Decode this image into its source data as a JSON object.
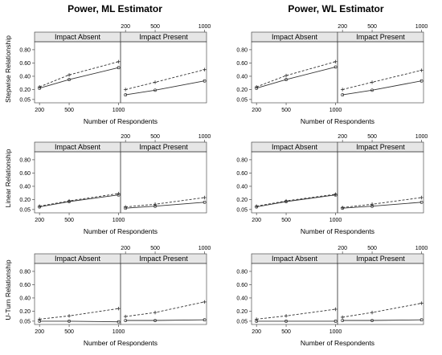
{
  "columns": [
    {
      "title": "Power, ML Estimator"
    },
    {
      "title": "Power, WL Estimator"
    }
  ],
  "row_labels": [
    "Stepwise Relationship",
    "Linear Relationship",
    "U-Turn Relationship"
  ],
  "panel_labels": [
    "Impact Absent",
    "Impact Present"
  ],
  "xlabel": "Number of Respondents",
  "x_ticks": [
    "200",
    "500",
    "1000"
  ],
  "y_ticks": [
    "0.05",
    "0.20",
    "0.40",
    "0.60",
    "0.80"
  ],
  "chart_data": {
    "type": "line",
    "x": [
      200,
      500,
      1000
    ],
    "ylim": [
      0,
      0.92
    ],
    "y_ticks": [
      0.05,
      0.2,
      0.4,
      0.6,
      0.8
    ],
    "grid": false,
    "legend": "none",
    "line_styles": {
      "solid": "#333333",
      "dashed": "#333333"
    },
    "panels": [
      {
        "estimator": "ML",
        "relationship": "Stepwise Relationship",
        "impact": "Impact Absent",
        "series": [
          {
            "style": "dashed",
            "values": [
              0.24,
              0.42,
              0.62
            ]
          },
          {
            "style": "solid",
            "values": [
              0.22,
              0.35,
              0.53
            ]
          }
        ]
      },
      {
        "estimator": "ML",
        "relationship": "Stepwise Relationship",
        "impact": "Impact Present",
        "series": [
          {
            "style": "dashed",
            "values": [
              0.2,
              0.31,
              0.5
            ]
          },
          {
            "style": "solid",
            "values": [
              0.12,
              0.19,
              0.33
            ]
          }
        ]
      },
      {
        "estimator": "WL",
        "relationship": "Stepwise Relationship",
        "impact": "Impact Absent",
        "series": [
          {
            "style": "dashed",
            "values": [
              0.24,
              0.41,
              0.62
            ]
          },
          {
            "style": "solid",
            "values": [
              0.22,
              0.35,
              0.54
            ]
          }
        ]
      },
      {
        "estimator": "WL",
        "relationship": "Stepwise Relationship",
        "impact": "Impact Present",
        "series": [
          {
            "style": "dashed",
            "values": [
              0.2,
              0.31,
              0.49
            ]
          },
          {
            "style": "solid",
            "values": [
              0.12,
              0.19,
              0.33
            ]
          }
        ]
      },
      {
        "estimator": "ML",
        "relationship": "Linear Relationship",
        "impact": "Impact Absent",
        "series": [
          {
            "style": "dashed",
            "values": [
              0.1,
              0.18,
              0.29
            ]
          },
          {
            "style": "solid",
            "values": [
              0.09,
              0.17,
              0.27
            ]
          }
        ]
      },
      {
        "estimator": "ML",
        "relationship": "Linear Relationship",
        "impact": "Impact Present",
        "series": [
          {
            "style": "dashed",
            "values": [
              0.09,
              0.13,
              0.23
            ]
          },
          {
            "style": "solid",
            "values": [
              0.07,
              0.1,
              0.16
            ]
          }
        ]
      },
      {
        "estimator": "WL",
        "relationship": "Linear Relationship",
        "impact": "Impact Absent",
        "series": [
          {
            "style": "dashed",
            "values": [
              0.1,
              0.18,
              0.28
            ]
          },
          {
            "style": "solid",
            "values": [
              0.09,
              0.17,
              0.27
            ]
          }
        ]
      },
      {
        "estimator": "WL",
        "relationship": "Linear Relationship",
        "impact": "Impact Present",
        "series": [
          {
            "style": "dashed",
            "values": [
              0.08,
              0.13,
              0.23
            ]
          },
          {
            "style": "solid",
            "values": [
              0.07,
              0.1,
              0.16
            ]
          }
        ]
      },
      {
        "estimator": "ML",
        "relationship": "U-Turn Relationship",
        "impact": "Impact Absent",
        "series": [
          {
            "style": "dashed",
            "values": [
              0.08,
              0.13,
              0.24
            ]
          },
          {
            "style": "solid",
            "values": [
              0.05,
              0.05,
              0.04
            ]
          }
        ]
      },
      {
        "estimator": "ML",
        "relationship": "U-Turn Relationship",
        "impact": "Impact Present",
        "series": [
          {
            "style": "dashed",
            "values": [
              0.12,
              0.18,
              0.34
            ]
          },
          {
            "style": "solid",
            "values": [
              0.06,
              0.06,
              0.07
            ]
          }
        ]
      },
      {
        "estimator": "WL",
        "relationship": "U-Turn Relationship",
        "impact": "Impact Absent",
        "series": [
          {
            "style": "dashed",
            "values": [
              0.08,
              0.13,
              0.23
            ]
          },
          {
            "style": "solid",
            "values": [
              0.05,
              0.05,
              0.05
            ]
          }
        ]
      },
      {
        "estimator": "WL",
        "relationship": "U-Turn Relationship",
        "impact": "Impact Present",
        "series": [
          {
            "style": "dashed",
            "values": [
              0.11,
              0.18,
              0.32
            ]
          },
          {
            "style": "solid",
            "values": [
              0.06,
              0.06,
              0.07
            ]
          }
        ]
      }
    ]
  }
}
